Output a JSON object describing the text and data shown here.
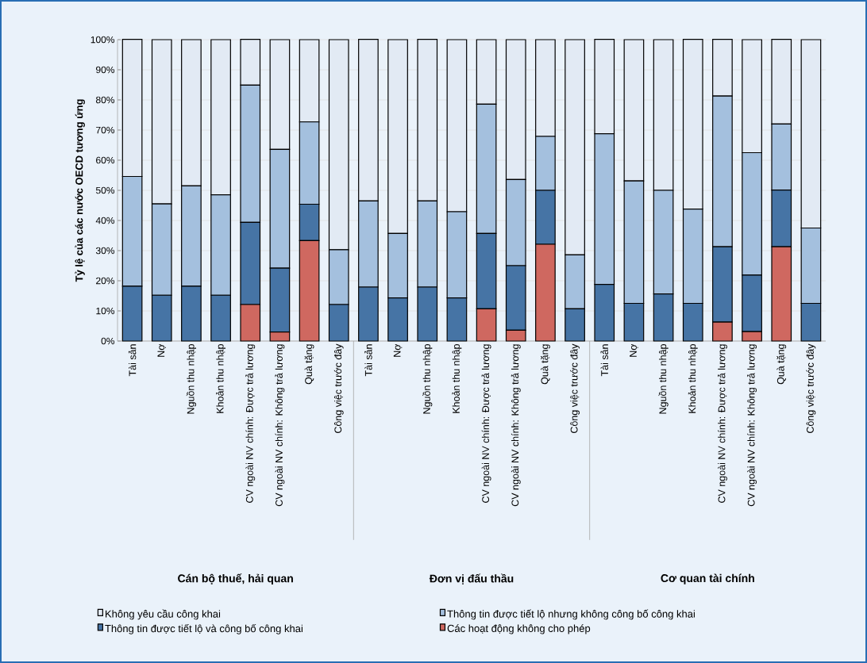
{
  "chart_data": {
    "type": "bar",
    "stacked": true,
    "ylabel": "Tỷ lệ của các nước OECD tương ứng",
    "categories": [
      "Tài sản",
      "Nợ",
      "Nguồn thu nhập",
      "Khoản thu nhập",
      "CV ngoài NV chính: Được trả lương",
      "CV ngoài NV chính: Không trả lương",
      "Quà tặng",
      "Công việc trước đây",
      "Tài sản",
      "Nợ",
      "Nguồn thu nhập",
      "Khoản thu nhập",
      "CV ngoài NV chính: Được trả lương",
      "CV ngoài NV chính: Không trả lương",
      "Quà tặng",
      "Công việc trước đây",
      "Tài sản",
      "Nợ",
      "Nguồn thu nhập",
      "Khoản thu nhập",
      "CV ngoài NV chính: Được trả lương",
      "CV ngoài NV chính: Không trả lương",
      "Quà tặng",
      "Công việc trước đây"
    ],
    "series": [
      {
        "name": "Các hoạt động không cho phép",
        "color": "#cf6860",
        "values": [
          0,
          0,
          0,
          0,
          12.1,
          3.0,
          33.3,
          0,
          0,
          0,
          0,
          0,
          10.7,
          3.6,
          32.1,
          0,
          0,
          0,
          0,
          0,
          6.3,
          3.1,
          31.3,
          0
        ]
      },
      {
        "name": "Thông tin được tiết lộ và công bố công khai",
        "color": "#4674a5",
        "values": [
          18.2,
          15.2,
          18.2,
          15.2,
          27.3,
          21.2,
          12.1,
          12.1,
          17.9,
          14.3,
          17.9,
          14.3,
          25.0,
          21.4,
          17.9,
          10.7,
          18.8,
          12.5,
          15.6,
          12.5,
          25.0,
          18.8,
          18.8,
          12.5
        ]
      },
      {
        "name": "Thông tin được tiết lộ nhưng không công bố công khai",
        "color": "#a4c0de",
        "values": [
          36.4,
          30.3,
          33.3,
          33.3,
          45.5,
          39.4,
          27.3,
          18.2,
          28.6,
          21.4,
          28.6,
          28.6,
          42.9,
          28.6,
          17.9,
          17.9,
          50.0,
          40.6,
          34.4,
          31.3,
          50.0,
          40.6,
          21.9,
          25.0
        ]
      },
      {
        "name": "Không yêu cầu công khai",
        "color": "#e2eaf4",
        "values": [
          45.5,
          54.5,
          48.5,
          51.5,
          15.2,
          36.4,
          27.3,
          69.7,
          53.6,
          64.3,
          53.6,
          57.1,
          21.4,
          46.4,
          32.1,
          71.4,
          31.3,
          46.9,
          50.0,
          56.3,
          18.8,
          37.5,
          28.1,
          62.5
        ]
      }
    ],
    "ylim": [
      0,
      100
    ],
    "yticks": [
      {
        "value": 0,
        "label": "0%"
      },
      {
        "value": 10,
        "label": "10%"
      },
      {
        "value": 20,
        "label": "20%"
      },
      {
        "value": 30,
        "label": "30%"
      },
      {
        "value": 40,
        "label": "40%"
      },
      {
        "value": 50,
        "label": "50%"
      },
      {
        "value": 60,
        "label": "60%"
      },
      {
        "value": 70,
        "label": "70%"
      },
      {
        "value": 80,
        "label": "80%"
      },
      {
        "value": 90,
        "label": "90%"
      },
      {
        "value": 100,
        "label": "100%"
      }
    ],
    "grid": "y",
    "legend": "bottom",
    "annotations": [
      "Cán bộ thuế, hải quan",
      "Đơn vị đấu thầu",
      "Cơ quan tài chính"
    ]
  }
}
